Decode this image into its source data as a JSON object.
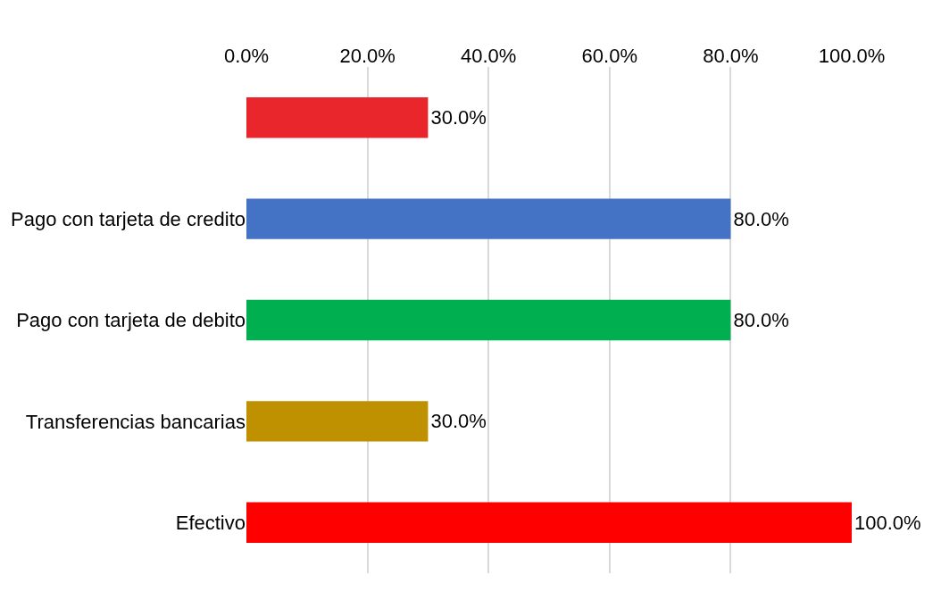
{
  "chart_data": {
    "type": "bar",
    "orientation": "horizontal",
    "categories": [
      null,
      "Pago con tarjeta de credito",
      "Pago con tarjeta de debito",
      "Transferencias bancarias",
      "Efectivo"
    ],
    "values": [
      30,
      80,
      80,
      30,
      100
    ],
    "colors": [
      "#e8262b",
      "#4472c4",
      "#00b050",
      "#bf9000",
      "#ff0000"
    ],
    "value_labels": [
      "30.0%",
      "80.0%",
      "80.0%",
      "30.0%",
      "100.0%"
    ],
    "xlim": [
      0,
      100
    ],
    "xticks": [
      {
        "value": 0,
        "label": "0.0%"
      },
      {
        "value": 20,
        "label": "20.0%"
      },
      {
        "value": 40,
        "label": "40.0%"
      },
      {
        "value": 60,
        "label": "60.0%"
      },
      {
        "value": 80,
        "label": "80.0%"
      },
      {
        "value": 100,
        "label": "100.0%"
      }
    ],
    "grid": "x",
    "legend": false
  }
}
